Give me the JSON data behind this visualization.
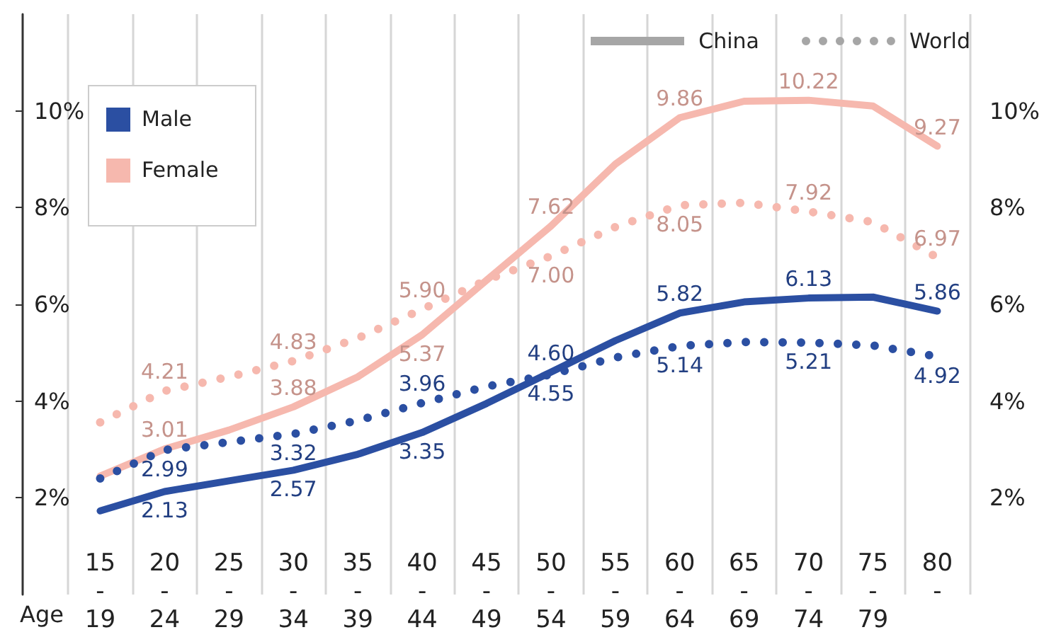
{
  "chart_data": {
    "type": "line",
    "xlabel": "Age",
    "categories": [
      "15\n-\n19",
      "20\n-\n24",
      "25\n-\n29",
      "30\n-\n34",
      "35\n-\n39",
      "40\n-\n44",
      "45\n-\n49",
      "50\n-\n54",
      "55\n-\n59",
      "60\n-\n64",
      "65\n-\n69",
      "70\n-\n74",
      "75\n-\n79",
      "80\n-"
    ],
    "series": [
      {
        "color": "#2b4fa2",
        "line_style": "solid",
        "values": [
          1.73,
          2.13,
          2.35,
          2.57,
          2.9,
          3.35,
          3.95,
          4.6,
          5.25,
          5.82,
          6.05,
          6.13,
          6.15,
          5.86
        ],
        "value_labels": [
          null,
          "2.13",
          null,
          "2.57",
          null,
          "3.35",
          null,
          "4.60",
          null,
          "5.82",
          null,
          "6.13",
          null,
          "5.86"
        ]
      },
      {
        "color": "#2b4fa2",
        "line_style": "dotted",
        "values": [
          2.4,
          2.99,
          3.15,
          3.32,
          3.6,
          3.96,
          4.3,
          4.55,
          4.9,
          5.14,
          5.22,
          5.21,
          5.15,
          4.92
        ],
        "value_labels": [
          null,
          "2.99",
          null,
          "3.32",
          null,
          "3.96",
          null,
          "4.55",
          null,
          "5.14",
          null,
          "5.21",
          null,
          "4.92"
        ]
      },
      {
        "color": "#f6b8ae",
        "line_style": "solid",
        "values": [
          2.45,
          3.01,
          3.4,
          3.88,
          4.5,
          5.37,
          6.5,
          7.62,
          8.9,
          9.86,
          10.2,
          10.22,
          10.1,
          9.27
        ],
        "value_labels": [
          null,
          "3.01",
          null,
          "3.88",
          null,
          "5.37",
          null,
          "7.62",
          null,
          "9.86",
          null,
          "10.22",
          null,
          "9.27"
        ]
      },
      {
        "color": "#f6b8ae",
        "line_style": "dotted",
        "values": [
          3.56,
          4.21,
          4.5,
          4.83,
          5.3,
          5.9,
          6.5,
          7.0,
          7.6,
          8.05,
          8.1,
          7.92,
          7.7,
          6.97
        ],
        "value_labels": [
          null,
          "4.21",
          null,
          "4.83",
          null,
          "5.90",
          null,
          "7.00",
          null,
          "8.05",
          null,
          "7.92",
          null,
          "6.97"
        ]
      }
    ],
    "ylim": [
      0,
      12
    ],
    "yticks": [
      {
        "value": 2,
        "label": "2%"
      },
      {
        "value": 4,
        "label": "4%"
      },
      {
        "value": 6,
        "label": "6%"
      },
      {
        "value": 8,
        "label": "8%"
      },
      {
        "value": 10,
        "label": "10%"
      }
    ],
    "y2lim": [
      0,
      12
    ],
    "y2ticks": [
      {
        "value": 2,
        "label": "2%"
      },
      {
        "value": 4,
        "label": "4%"
      },
      {
        "value": 6,
        "label": "6%"
      },
      {
        "value": 8,
        "label": "8%"
      },
      {
        "value": 10,
        "label": "10%"
      }
    ],
    "grid": "x",
    "marker": "none",
    "annotations": [
      "Male",
      "Female",
      "China",
      "World"
    ]
  }
}
